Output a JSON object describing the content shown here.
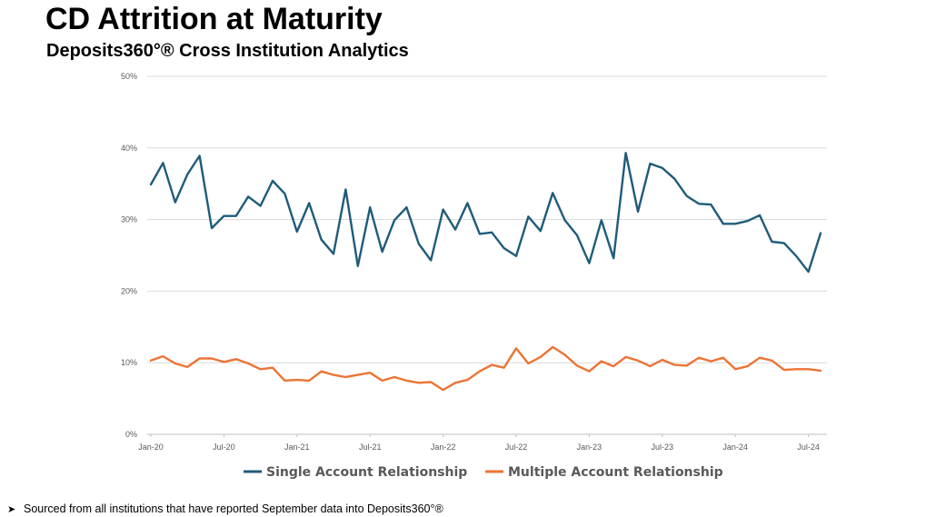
{
  "header": {
    "title": "CD Attrition at Maturity",
    "subtitle": "Deposits360°® Cross Institution Analytics"
  },
  "footnote": {
    "bullet": "➤",
    "text": "Sourced from all institutions that have reported September data into Deposits360°®"
  },
  "colors": {
    "single": "#1f5c7a",
    "multiple": "#ec7434",
    "grid": "#d9d9d9"
  },
  "chart_data": {
    "type": "line",
    "title": "CD Attrition at Maturity",
    "subtitle": "Deposits360°® Cross Institution Analytics",
    "xlabel": "",
    "ylabel": "",
    "ylim": [
      0,
      50
    ],
    "y_ticks": [
      0,
      10,
      20,
      30,
      40,
      50
    ],
    "y_tick_labels": [
      "0%",
      "10%",
      "20%",
      "30%",
      "40%",
      "50%"
    ],
    "x_tick_labels": [
      "Jan-20",
      "Jul-20",
      "Jan-21",
      "Jul-21",
      "Jan-22",
      "Jul-22",
      "Jan-23",
      "Jul-23",
      "Jan-24",
      "Jul-24"
    ],
    "x_tick_step": 6,
    "grid": true,
    "legend_position": "bottom",
    "x": [
      "Jan-20",
      "Feb-20",
      "Mar-20",
      "Apr-20",
      "May-20",
      "Jun-20",
      "Jul-20",
      "Aug-20",
      "Sep-20",
      "Oct-20",
      "Nov-20",
      "Dec-20",
      "Jan-21",
      "Feb-21",
      "Mar-21",
      "Apr-21",
      "May-21",
      "Jun-21",
      "Jul-21",
      "Aug-21",
      "Sep-21",
      "Oct-21",
      "Nov-21",
      "Dec-21",
      "Jan-22",
      "Feb-22",
      "Mar-22",
      "Apr-22",
      "May-22",
      "Jun-22",
      "Jul-22",
      "Aug-22",
      "Sep-22",
      "Oct-22",
      "Nov-22",
      "Dec-22",
      "Jan-23",
      "Feb-23",
      "Mar-23",
      "Apr-23",
      "May-23",
      "Jun-23",
      "Jul-23",
      "Aug-23",
      "Sep-23",
      "Oct-23",
      "Nov-23",
      "Dec-23",
      "Jan-24",
      "Feb-24",
      "Mar-24",
      "Apr-24",
      "May-24",
      "Jun-24",
      "Jul-24",
      "Aug-24"
    ],
    "series": [
      {
        "name": "Single Account Relationship",
        "values": [
          34.9,
          37.9,
          32.4,
          36.3,
          38.9,
          28.8,
          30.5,
          30.5,
          33.2,
          31.9,
          35.4,
          33.6,
          28.3,
          32.3,
          27.2,
          25.2,
          34.2,
          23.5,
          31.7,
          25.5,
          29.9,
          31.7,
          26.6,
          24.3,
          31.4,
          28.6,
          32.3,
          28.0,
          28.2,
          26.0,
          24.9,
          30.4,
          28.4,
          33.7,
          29.9,
          27.8,
          23.9,
          29.9,
          24.6,
          39.3,
          31.1,
          37.8,
          37.2,
          35.7,
          33.3,
          32.2,
          32.1,
          29.4,
          29.4,
          29.8,
          30.6,
          26.9,
          26.7,
          24.9,
          22.7,
          28.1
        ]
      },
      {
        "name": "Multiple Account Relationship",
        "values": [
          10.3,
          10.9,
          9.9,
          9.4,
          10.6,
          10.6,
          10.1,
          10.5,
          9.9,
          9.1,
          9.3,
          7.5,
          7.6,
          7.5,
          8.8,
          8.3,
          8.0,
          8.3,
          8.6,
          7.5,
          8.0,
          7.5,
          7.2,
          7.3,
          6.2,
          7.2,
          7.6,
          8.8,
          9.7,
          9.3,
          12.0,
          9.9,
          10.8,
          12.2,
          11.1,
          9.6,
          8.8,
          10.2,
          9.5,
          10.8,
          10.3,
          9.5,
          10.4,
          9.7,
          9.6,
          10.7,
          10.2,
          10.7,
          9.1,
          9.5,
          10.7,
          10.3,
          9.0,
          9.1,
          9.1,
          8.9
        ]
      }
    ]
  }
}
